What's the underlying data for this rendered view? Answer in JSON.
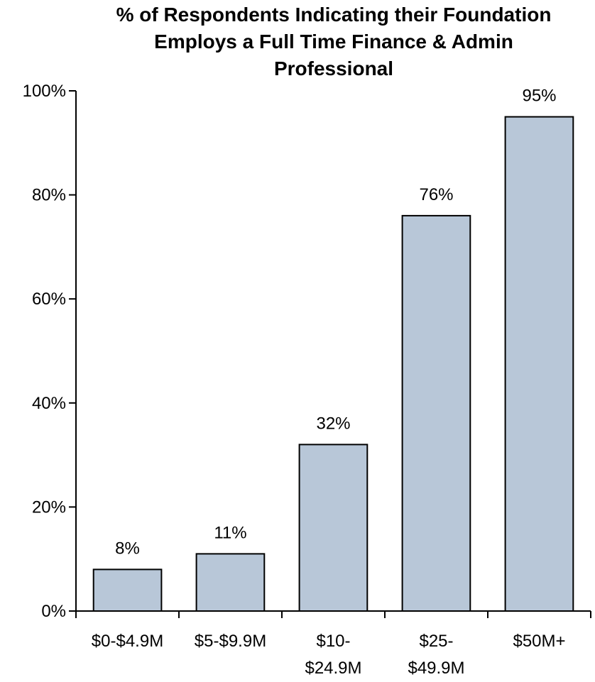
{
  "chart_data": {
    "type": "bar",
    "title_lines": [
      "% of Respondents Indicating their Foundation",
      "Employs a Full Time Finance & Admin",
      "Professional"
    ],
    "categories": [
      [
        "$0-$4.9M"
      ],
      [
        "$5-$9.9M"
      ],
      [
        "$10-",
        "$24.9M"
      ],
      [
        "$25-",
        "$49.9M"
      ],
      [
        "$50M+"
      ]
    ],
    "values": [
      8,
      11,
      32,
      76,
      95
    ],
    "value_labels": [
      "8%",
      "11%",
      "32%",
      "76%",
      "95%"
    ],
    "ylim": [
      0,
      100
    ],
    "yticks": [
      0,
      20,
      40,
      60,
      80,
      100
    ],
    "ytick_labels": [
      "0%",
      "20%",
      "40%",
      "60%",
      "80%",
      "100%"
    ],
    "grid": false,
    "legend": "none",
    "colors": {
      "bar_fill": "#b8c7d8",
      "bar_stroke": "#000000",
      "axis": "#000000"
    }
  }
}
